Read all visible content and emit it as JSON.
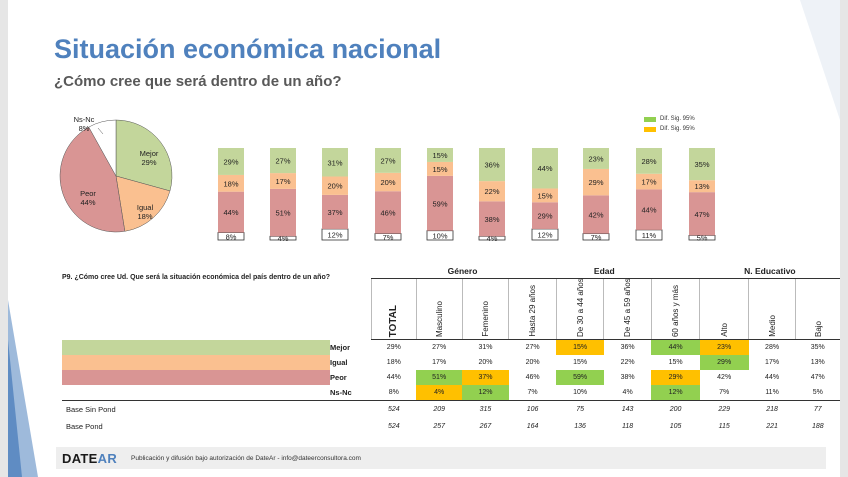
{
  "title": "Situación económica nacional",
  "subtitle": "¿Cómo cree que será dentro de un año?",
  "colors": {
    "mejor": "#c3d69b",
    "igual": "#fac090",
    "peor": "#d99594",
    "nsnc": "#ffffff",
    "sig_green": "#92d050",
    "sig_orange": "#ffc000",
    "title": "#4f81bd"
  },
  "legend": [
    {
      "label": "Dif. Sig. 95%",
      "color": "#92d050"
    },
    {
      "label": "Dif. Sig. 95%",
      "color": "#ffc000"
    }
  ],
  "chart_data": [
    {
      "type": "pie",
      "categories": [
        "Mejor",
        "Igual",
        "Peor",
        "Ns-Nc"
      ],
      "values": [
        29,
        18,
        44,
        8
      ],
      "labels": [
        "29%",
        "18%",
        "44%",
        "8%"
      ]
    },
    {
      "type": "bar",
      "stacked": true,
      "categories": [
        "TOTAL",
        "Masculino",
        "Femenino",
        "Hasta 29 años",
        "De 30 a 44 años",
        "De 45 a 59 años",
        "60 años y más",
        "Alto",
        "Medio",
        "Bajo"
      ],
      "series": [
        {
          "name": "Ns-Nc",
          "values": [
            8,
            4,
            12,
            7,
            10,
            4,
            12,
            7,
            11,
            5
          ]
        },
        {
          "name": "Peor",
          "values": [
            44,
            51,
            37,
            46,
            59,
            38,
            29,
            42,
            44,
            47
          ]
        },
        {
          "name": "Igual",
          "values": [
            18,
            17,
            20,
            20,
            15,
            22,
            15,
            29,
            17,
            13
          ]
        },
        {
          "name": "Mejor",
          "values": [
            29,
            27,
            31,
            27,
            15,
            36,
            44,
            23,
            28,
            35
          ]
        }
      ]
    }
  ],
  "table": {
    "question": "P9. ¿Cómo cree Ud. Que será la situación económica del país dentro de un año?",
    "groups": [
      {
        "label": "Género",
        "span": 2
      },
      {
        "label": "Edad",
        "span": 4
      },
      {
        "label": "N. Educativo",
        "span": 3
      }
    ],
    "columns": [
      "TOTAL",
      "Masculino",
      "Femenino",
      "Hasta 29 años",
      "De 30 a 44 años",
      "De 45 a 59 años",
      "60 años y más",
      "Alto",
      "Medio",
      "Bajo"
    ],
    "rows": [
      {
        "label": "Mejor",
        "color": "#c3d69b",
        "values": [
          "29%",
          "27%",
          "31%",
          "27%",
          "15%",
          "36%",
          "44%",
          "23%",
          "28%",
          "35%"
        ],
        "hl": [
          "",
          "",
          "",
          "",
          "o",
          "",
          "g",
          "o",
          "",
          ""
        ]
      },
      {
        "label": "Igual",
        "color": "#fac090",
        "values": [
          "18%",
          "17%",
          "20%",
          "20%",
          "15%",
          "22%",
          "15%",
          "29%",
          "17%",
          "13%"
        ],
        "hl": [
          "",
          "",
          "",
          "",
          "",
          "",
          "",
          "g",
          "",
          ""
        ]
      },
      {
        "label": "Peor",
        "color": "#d99594",
        "values": [
          "44%",
          "51%",
          "37%",
          "46%",
          "59%",
          "38%",
          "29%",
          "42%",
          "44%",
          "47%"
        ],
        "hl": [
          "",
          "g",
          "o",
          "",
          "g",
          "",
          "o",
          "",
          "",
          ""
        ]
      },
      {
        "label": "Ns-Nc",
        "color": "#ffffff",
        "values": [
          "8%",
          "4%",
          "12%",
          "7%",
          "10%",
          "4%",
          "12%",
          "7%",
          "11%",
          "5%"
        ],
        "hl": [
          "",
          "o",
          "g",
          "",
          "",
          "",
          "g",
          "",
          "",
          ""
        ]
      }
    ],
    "base": [
      {
        "label": "Base Sin Pond",
        "values": [
          "524",
          "209",
          "315",
          "106",
          "75",
          "143",
          "200",
          "229",
          "218",
          "77"
        ]
      },
      {
        "label": "Base Pond",
        "values": [
          "524",
          "257",
          "267",
          "164",
          "136",
          "118",
          "105",
          "115",
          "221",
          "188"
        ]
      }
    ]
  },
  "footer": {
    "logo_a": "DATE",
    "logo_b": "AR",
    "text": "Publicación y difusión bajo autorización de DateAr - info@dateerconsultora.com"
  }
}
